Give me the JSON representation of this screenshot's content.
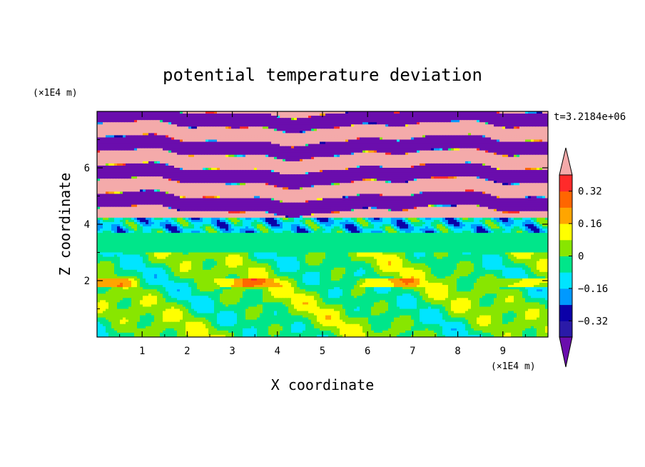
{
  "chart_data": {
    "type": "heatmap",
    "title": "potential temperature deviation",
    "time_label": "t=3.2184e+06",
    "xlabel": "X coordinate",
    "ylabel": "Z coordinate",
    "x_unit": "(×1E4 m)",
    "y_unit": "(×1E4 m)",
    "xlim": [
      0,
      10
    ],
    "ylim": [
      0,
      8
    ],
    "x_ticks": [
      "1",
      "2",
      "3",
      "4",
      "5",
      "6",
      "7",
      "8",
      "9"
    ],
    "y_ticks": [
      "2",
      "4",
      "6"
    ],
    "colorbar": {
      "levels": [
        -0.4,
        -0.32,
        -0.24,
        -0.16,
        -0.08,
        0,
        0.08,
        0.16,
        0.24,
        0.32,
        0.4
      ],
      "labels": [
        "0.32",
        "0.16",
        "0",
        "−0.16",
        "−0.32"
      ],
      "colors": [
        "#6a0dad",
        "#2a1aa8",
        "#0b00a8",
        "#0099ff",
        "#00e5ff",
        "#00e68a",
        "#88e600",
        "#ffff00",
        "#ffa500",
        "#ff6600",
        "#ff2a2a",
        "#f4aaaa"
      ],
      "extend": "both"
    },
    "bands": [
      {
        "z_min": 4.2,
        "z_max": 8.0,
        "pattern": "alternating",
        "value_high": 0.4,
        "value_low": -0.4
      },
      {
        "z_min": 3.7,
        "z_max": 4.2,
        "pattern": "mixed",
        "value": -0.12
      },
      {
        "z_min": 3.0,
        "z_max": 3.7,
        "pattern": "uniform",
        "value": -0.04
      },
      {
        "z_min": 0.0,
        "z_max": 3.0,
        "pattern": "mixed",
        "value": 0.0
      }
    ]
  }
}
